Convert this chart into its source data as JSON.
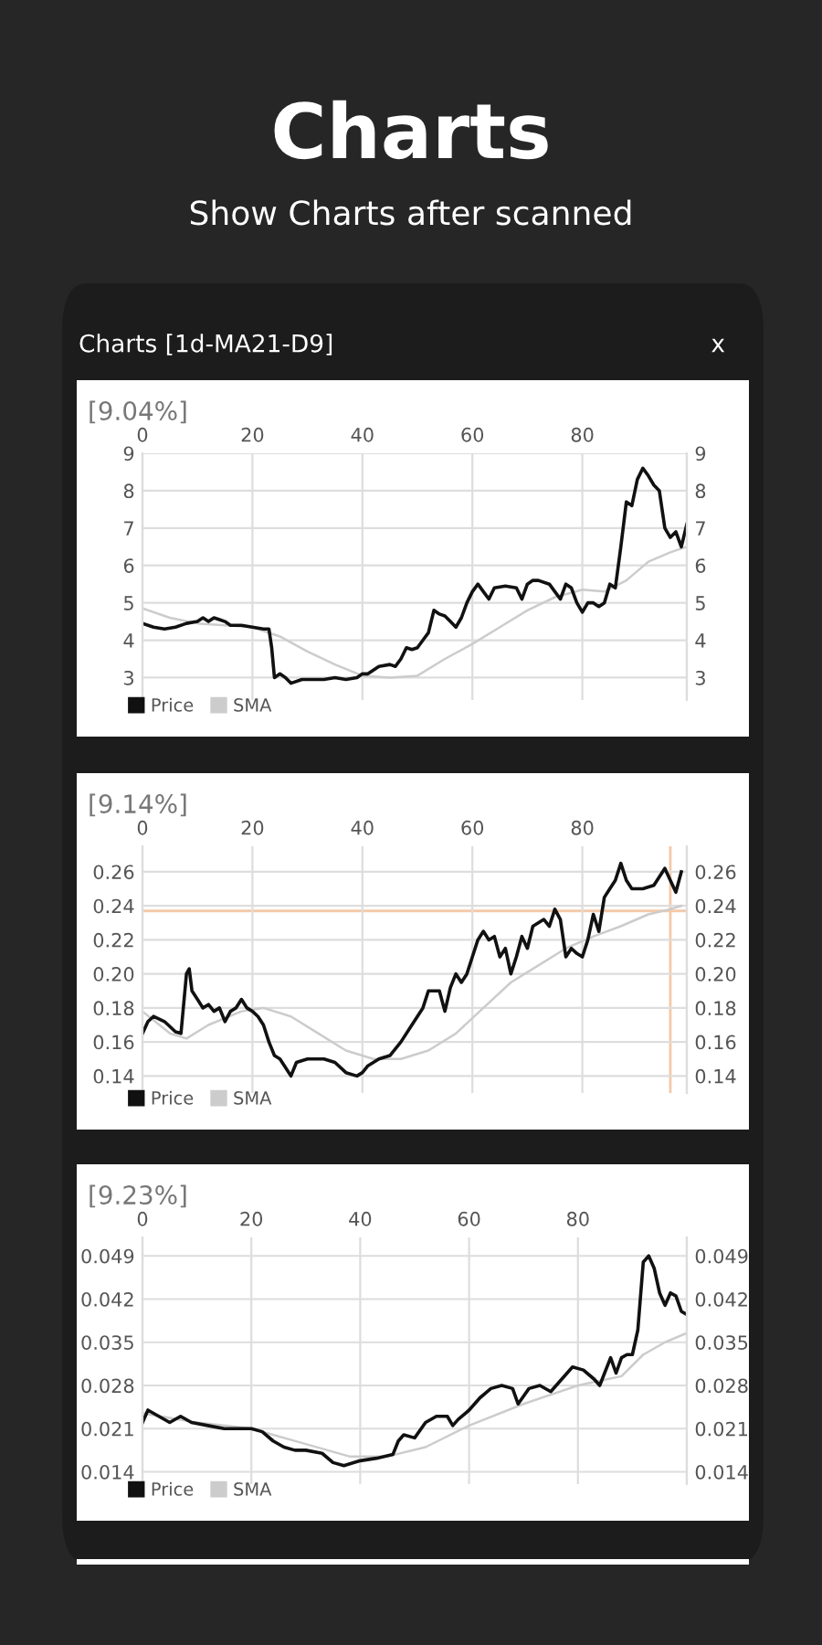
{
  "chart_data": [
    {
      "type": "other",
      "title": "Charts",
      "subtitle": "Show Charts after scanned",
      "annotations": [
        "Charts [1d-MA21-D9]",
        "x"
      ]
    },
    {
      "type": "line",
      "title": "[9.04%]",
      "xlim": [
        0,
        99
      ],
      "xticks": [
        0,
        20,
        40,
        60,
        80
      ],
      "ylim": [
        2.4,
        9
      ],
      "yticks": [
        3,
        4,
        5,
        6,
        7,
        8,
        9
      ],
      "y2lim": [
        2.4,
        9
      ],
      "y2ticks": [
        3,
        4,
        5,
        6,
        7,
        8,
        9
      ],
      "grid": true,
      "legend": "bottom left",
      "marker": "none",
      "line_style": "solid",
      "series": [
        {
          "name": "Price",
          "color": "#111111",
          "x": [
            0,
            2,
            4,
            6,
            8,
            10,
            11,
            12,
            13,
            14,
            15,
            16,
            18,
            20,
            22,
            23,
            23.5,
            24,
            25,
            26,
            27,
            29,
            31,
            33,
            35,
            37,
            39,
            40,
            41,
            42,
            43,
            45,
            46,
            47,
            48,
            49,
            50,
            51,
            52,
            53,
            54,
            55,
            56,
            57,
            58,
            59,
            60,
            61,
            62,
            63,
            64,
            66,
            68,
            69,
            70,
            71,
            72,
            74,
            75,
            76,
            77,
            78,
            79,
            80,
            81,
            82,
            83,
            84,
            85,
            86,
            87,
            88,
            89,
            90,
            91,
            92,
            93,
            94,
            95,
            96,
            97,
            98,
            99
          ],
          "values": [
            4.45,
            4.35,
            4.3,
            4.35,
            4.45,
            4.5,
            4.6,
            4.5,
            4.6,
            4.55,
            4.5,
            4.4,
            4.4,
            4.35,
            4.3,
            4.3,
            3.8,
            3.0,
            3.1,
            3.0,
            2.85,
            2.95,
            2.95,
            2.95,
            3.0,
            2.95,
            3.0,
            3.1,
            3.1,
            3.2,
            3.3,
            3.35,
            3.3,
            3.5,
            3.8,
            3.75,
            3.8,
            4.0,
            4.2,
            4.8,
            4.7,
            4.65,
            4.5,
            4.35,
            4.6,
            5.0,
            5.3,
            5.5,
            5.3,
            5.1,
            5.4,
            5.45,
            5.4,
            5.1,
            5.5,
            5.6,
            5.6,
            5.5,
            5.3,
            5.1,
            5.5,
            5.4,
            5.0,
            4.75,
            5.0,
            5.0,
            4.9,
            5.0,
            5.5,
            5.4,
            6.5,
            7.7,
            7.6,
            8.3,
            8.6,
            8.4,
            8.15,
            8.0,
            7.0,
            6.75,
            6.9,
            6.5,
            7.1
          ]
        },
        {
          "name": "SMA",
          "color": "#cccccc",
          "x": [
            0,
            5,
            10,
            15,
            20,
            25,
            30,
            35,
            40,
            45,
            50,
            55,
            60,
            65,
            70,
            75,
            80,
            84,
            88,
            92,
            96,
            99
          ],
          "values": [
            4.85,
            4.6,
            4.45,
            4.4,
            4.35,
            4.1,
            3.7,
            3.35,
            3.05,
            3.0,
            3.05,
            3.5,
            3.9,
            4.35,
            4.8,
            5.15,
            5.35,
            5.3,
            5.6,
            6.1,
            6.35,
            6.5
          ]
        }
      ]
    },
    {
      "type": "line",
      "title": "[9.14%]",
      "xlim": [
        0,
        99
      ],
      "xticks": [
        0,
        20,
        40,
        60,
        80
      ],
      "ylim": [
        0.13,
        0.275
      ],
      "yticks": [
        0.14,
        0.16,
        0.18,
        {
          "value": 0.2,
          "label": "0.20"
        },
        0.22,
        0.24,
        0.26
      ],
      "y2lim": [
        0.13,
        0.275
      ],
      "y2ticks": [
        0.14,
        0.16,
        0.18,
        {
          "value": 0.2,
          "label": "0.20"
        },
        0.22,
        0.24,
        0.26
      ],
      "grid": true,
      "legend": "bottom left",
      "marker": "none",
      "line_style": "solid",
      "ref_lines": [
        {
          "axis": "y",
          "value": 0.237,
          "color": "#f5c9a8"
        },
        {
          "axis": "x",
          "value": 96,
          "color": "#f5c9a8"
        }
      ],
      "series": [
        {
          "name": "Price",
          "color": "#111111",
          "x": [
            0,
            1,
            2,
            4,
            6,
            7,
            8,
            8.5,
            9,
            10,
            11,
            12,
            13,
            14,
            15,
            16,
            17,
            18,
            19,
            20,
            21,
            22,
            23,
            24,
            25,
            26,
            27,
            28,
            30,
            33,
            35,
            37,
            39,
            40,
            41,
            43,
            45,
            47,
            49,
            51,
            52,
            54,
            55,
            56,
            57,
            58,
            59,
            60,
            61,
            62,
            63,
            64,
            65,
            66,
            67,
            68,
            69,
            70,
            71,
            72,
            73,
            74,
            75,
            76,
            77,
            78,
            79,
            80,
            81,
            82,
            83,
            84,
            85,
            86,
            87,
            88,
            89,
            91,
            93,
            95,
            96,
            97,
            98
          ],
          "values": [
            0.165,
            0.172,
            0.175,
            0.172,
            0.166,
            0.165,
            0.2,
            0.203,
            0.19,
            0.185,
            0.18,
            0.182,
            0.178,
            0.18,
            0.172,
            0.178,
            0.18,
            0.185,
            0.18,
            0.178,
            0.175,
            0.17,
            0.16,
            0.152,
            0.15,
            0.145,
            0.14,
            0.148,
            0.15,
            0.15,
            0.148,
            0.142,
            0.14,
            0.142,
            0.146,
            0.15,
            0.152,
            0.16,
            0.17,
            0.18,
            0.19,
            0.19,
            0.178,
            0.192,
            0.2,
            0.195,
            0.2,
            0.21,
            0.22,
            0.225,
            0.22,
            0.222,
            0.21,
            0.215,
            0.2,
            0.21,
            0.222,
            0.215,
            0.228,
            0.23,
            0.232,
            0.228,
            0.238,
            0.232,
            0.21,
            0.215,
            0.212,
            0.21,
            0.22,
            0.235,
            0.225,
            0.245,
            0.25,
            0.255,
            0.265,
            0.255,
            0.25,
            0.25,
            0.252,
            0.262,
            0.255,
            0.248,
            0.26
          ]
        },
        {
          "name": "SMA",
          "color": "#cccccc",
          "x": [
            0,
            5,
            8,
            12,
            18,
            22,
            27,
            32,
            37,
            42,
            47,
            52,
            57,
            62,
            67,
            72,
            77,
            82,
            87,
            92,
            96,
            98
          ],
          "values": [
            0.178,
            0.165,
            0.162,
            0.17,
            0.178,
            0.18,
            0.175,
            0.165,
            0.155,
            0.15,
            0.15,
            0.155,
            0.165,
            0.18,
            0.195,
            0.205,
            0.215,
            0.222,
            0.228,
            0.235,
            0.238,
            0.24
          ]
        }
      ]
    },
    {
      "type": "line",
      "title": "[9.23%]",
      "xlim": [
        0,
        100
      ],
      "xticks": [
        0,
        20,
        40,
        60,
        80
      ],
      "ylim": [
        0.012,
        0.052
      ],
      "yticks": [
        0.014,
        0.021,
        0.028,
        0.035,
        0.042,
        0.049
      ],
      "y2lim": [
        0.012,
        0.052
      ],
      "y2ticks": [
        0.014,
        0.021,
        0.028,
        0.035,
        0.042,
        0.049
      ],
      "grid": true,
      "legend": "bottom left",
      "marker": "none",
      "line_style": "solid",
      "series": [
        {
          "name": "Price",
          "color": "#111111",
          "x": [
            0,
            1,
            3,
            5,
            7,
            9,
            12,
            15,
            18,
            20,
            22,
            24,
            26,
            28,
            30,
            33,
            35,
            37,
            40,
            43,
            46,
            47,
            48,
            50,
            52,
            54,
            56,
            57,
            58,
            60,
            62,
            64,
            66,
            68,
            69,
            71,
            73,
            75,
            77,
            79,
            81,
            83,
            84,
            86,
            87,
            88,
            89,
            90,
            91,
            92,
            93,
            94,
            95,
            96,
            97,
            98,
            99,
            100
          ],
          "values": [
            0.022,
            0.024,
            0.023,
            0.022,
            0.023,
            0.022,
            0.0215,
            0.021,
            0.021,
            0.021,
            0.0205,
            0.019,
            0.018,
            0.0175,
            0.0175,
            0.017,
            0.0155,
            0.015,
            0.0158,
            0.0162,
            0.0168,
            0.019,
            0.02,
            0.0195,
            0.022,
            0.023,
            0.023,
            0.0215,
            0.0225,
            0.024,
            0.026,
            0.0275,
            0.028,
            0.0275,
            0.025,
            0.0275,
            0.028,
            0.027,
            0.029,
            0.031,
            0.0305,
            0.029,
            0.028,
            0.0325,
            0.03,
            0.0325,
            0.033,
            0.033,
            0.037,
            0.048,
            0.049,
            0.047,
            0.043,
            0.041,
            0.043,
            0.0425,
            0.04,
            0.0395
          ]
        },
        {
          "name": "SMA",
          "color": "#cccccc",
          "x": [
            0,
            10,
            20,
            30,
            38,
            45,
            52,
            60,
            70,
            80,
            88,
            92,
            96,
            100
          ],
          "values": [
            0.0235,
            0.022,
            0.021,
            0.0185,
            0.0165,
            0.0165,
            0.018,
            0.0215,
            0.025,
            0.028,
            0.0295,
            0.033,
            0.035,
            0.0365
          ]
        }
      ]
    }
  ]
}
